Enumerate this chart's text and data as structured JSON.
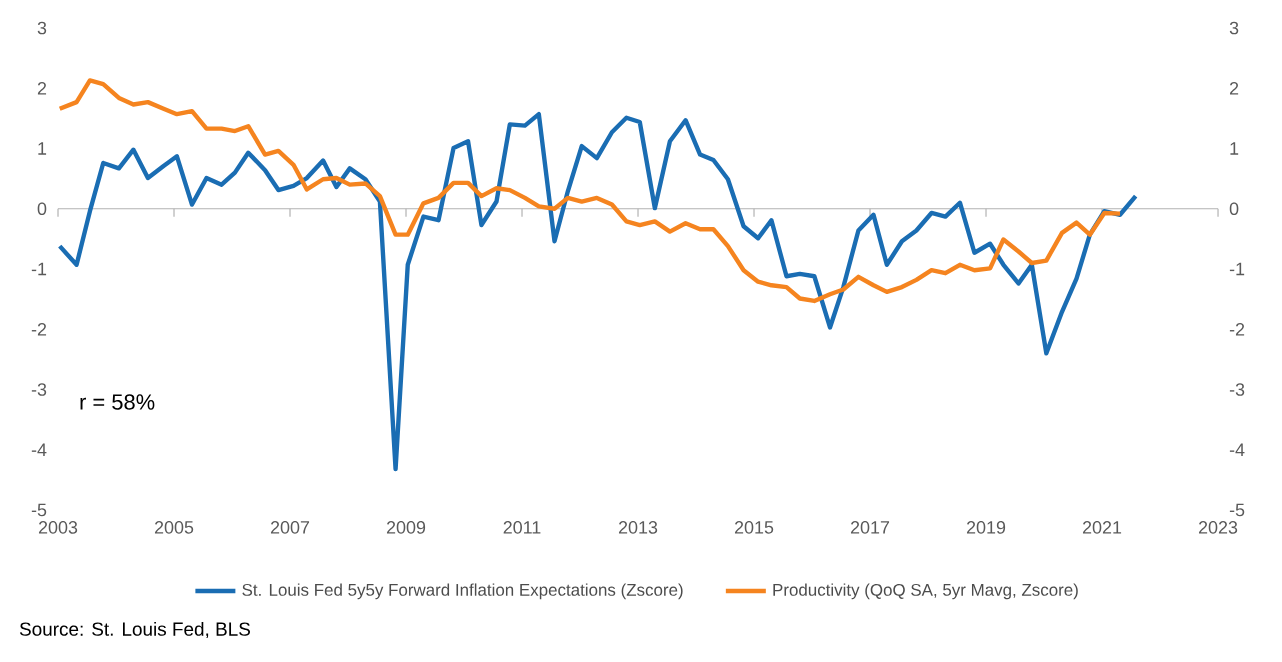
{
  "chart_data": {
    "type": "line",
    "x": [
      2003.03,
      2003.32,
      2003.55,
      2003.78,
      2004.05,
      2004.3,
      2004.55,
      2004.82,
      2005.05,
      2005.31,
      2005.56,
      2005.82,
      2006.05,
      2006.28,
      2006.57,
      2006.8,
      2007.06,
      2007.29,
      2007.57,
      2007.8,
      2008.03,
      2008.3,
      2008.55,
      2008.82,
      2009.03,
      2009.3,
      2009.56,
      2009.82,
      2010.07,
      2010.3,
      2010.56,
      2010.79,
      2011.05,
      2011.29,
      2011.56,
      2011.79,
      2012.03,
      2012.29,
      2012.55,
      2012.8,
      2013.03,
      2013.29,
      2013.55,
      2013.82,
      2014.07,
      2014.3,
      2014.55,
      2014.82,
      2015.07,
      2015.3,
      2015.56,
      2015.79,
      2016.04,
      2016.31,
      2016.54,
      2016.8,
      2017.06,
      2017.29,
      2017.55,
      2017.8,
      2018.06,
      2018.3,
      2018.55,
      2018.8,
      2019.07,
      2019.3,
      2019.56,
      2019.79,
      2020.04,
      2020.31,
      2020.56,
      2020.79,
      2021.04,
      2021.31,
      2021.58
    ],
    "series": [
      {
        "name": "St. Louis Fed 5y5y Forward Inflation Expectations (Zscore)",
        "color": "#1a6db3",
        "values": [
          -0.62,
          -0.93,
          -0.04,
          0.76,
          0.67,
          0.98,
          0.51,
          0.71,
          0.87,
          0.07,
          0.51,
          0.4,
          0.6,
          0.93,
          0.64,
          0.31,
          0.38,
          0.51,
          0.8,
          0.36,
          0.67,
          0.49,
          0.12,
          -4.32,
          -0.93,
          -0.13,
          -0.19,
          1.01,
          1.12,
          -0.27,
          0.12,
          1.4,
          1.38,
          1.57,
          -0.54,
          0.29,
          1.04,
          0.84,
          1.27,
          1.51,
          1.44,
          0.01,
          1.12,
          1.47,
          0.9,
          0.81,
          0.49,
          -0.29,
          -0.49,
          -0.19,
          -1.12,
          -1.08,
          -1.12,
          -1.97,
          -1.3,
          -0.36,
          -0.1,
          -0.93,
          -0.54,
          -0.36,
          -0.07,
          -0.13,
          0.1,
          -0.73,
          -0.58,
          -0.93,
          -1.24,
          -0.93,
          -2.4,
          -1.71,
          -1.16,
          -0.43,
          -0.04,
          -0.1,
          0.21
        ]
      },
      {
        "name": "Productivity (QoQ SA, 5yr Mavg, Zscore)",
        "color": "#f5841f",
        "values": [
          1.66,
          1.77,
          2.13,
          2.07,
          1.84,
          1.73,
          1.77,
          1.66,
          1.57,
          1.62,
          1.33,
          1.33,
          1.29,
          1.37,
          0.9,
          0.96,
          0.73,
          0.32,
          0.49,
          0.51,
          0.4,
          0.42,
          0.21,
          -0.43,
          -0.43,
          0.09,
          0.18,
          0.43,
          0.43,
          0.21,
          0.34,
          0.31,
          0.18,
          0.04,
          0.0,
          0.18,
          0.12,
          0.18,
          0.07,
          -0.21,
          -0.27,
          -0.21,
          -0.38,
          -0.24,
          -0.34,
          -0.34,
          -0.62,
          -1.02,
          -1.21,
          -1.27,
          -1.3,
          -1.49,
          -1.53,
          -1.42,
          -1.34,
          -1.13,
          -1.27,
          -1.38,
          -1.3,
          -1.18,
          -1.02,
          -1.07,
          -0.93,
          -1.02,
          -0.99,
          -0.51,
          -0.71,
          -0.9,
          -0.86,
          -0.4,
          -0.23,
          -0.43,
          -0.07,
          -0.08,
          null
        ]
      }
    ],
    "xlim": [
      2003,
      2023
    ],
    "xticks": [
      2003,
      2005,
      2007,
      2009,
      2011,
      2013,
      2015,
      2017,
      2019,
      2021,
      2023
    ],
    "ylim": [
      -5,
      3
    ],
    "yticks": [
      -5,
      -4,
      -3,
      -2,
      -1,
      0,
      1,
      2,
      3
    ],
    "y2lim": [
      -5,
      3
    ],
    "y2ticks": [
      -5,
      -4,
      -3,
      -2,
      -1,
      0,
      1,
      2,
      3
    ],
    "legend": "bottom",
    "marker": "none",
    "line_style": "solid",
    "annotations": [
      "r = 58%",
      "Source: St. Louis Fed, BLS"
    ]
  }
}
